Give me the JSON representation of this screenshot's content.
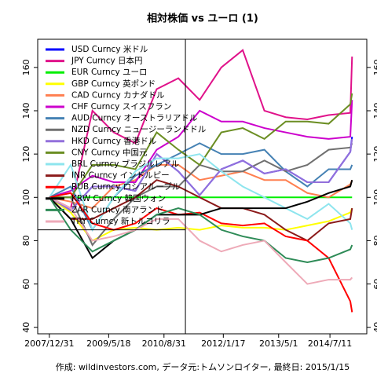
{
  "chart_data": {
    "type": "line",
    "title": "相対株価 vs ユーロ (1)",
    "footer": "作成: wildinvestors.com, データ元:トムソンロイター, 最終日: 2015/1/15",
    "x": [
      "2007/12/31",
      "2008/6/30",
      "2008/12/31",
      "2009/6/30",
      "2009/12/31",
      "2010/6/30",
      "2010/12/31",
      "2011/6/30",
      "2011/12/31",
      "2012/6/30",
      "2012/12/31",
      "2013/6/30",
      "2013/12/31",
      "2014/6/30",
      "2014/12/31",
      "2015/1/15"
    ],
    "xlim": [
      "2007/9/23",
      "2015/5/20"
    ],
    "xticks": [
      "2007/12/31",
      "2009/5/18",
      "2010/8/31",
      "2012/1/17",
      "2013/5/1",
      "2014/7/11"
    ],
    "ylim": [
      37,
      173
    ],
    "yticks": [
      40,
      60,
      80,
      100,
      120,
      140,
      160
    ],
    "vline": "2011/3/1",
    "hline": 85,
    "series": [
      {
        "name": "USD Curncy 米ドル",
        "color": "#0000ff",
        "values": [
          100,
          94,
          105,
          105,
          103,
          120,
          112,
          101,
          113,
          117,
          111,
          113,
          107,
          107,
          121,
          128
        ]
      },
      {
        "name": "JPY Curncy 日本円",
        "color": "#e0128a",
        "values": [
          100,
          95,
          140,
          130,
          125,
          150,
          155,
          145,
          160,
          168,
          140,
          137,
          136,
          138,
          139,
          165
        ]
      },
      {
        "name": "EUR Curncy ユーロ",
        "color": "#00ee00",
        "values": [
          100,
          100,
          100,
          100,
          100,
          100,
          100,
          100,
          100,
          100,
          100,
          100,
          100,
          100,
          100,
          100
        ]
      },
      {
        "name": "GBP Curncy 英ポンド",
        "color": "#ffff00",
        "values": [
          100,
          93,
          80,
          85,
          86,
          85,
          86,
          85,
          87,
          86,
          86,
          85,
          87,
          89,
          93,
          95
        ]
      },
      {
        "name": "CAD Curncy カナダドル",
        "color": "#ff7f50",
        "values": [
          100,
          98,
          95,
          105,
          108,
          115,
          115,
          108,
          110,
          112,
          108,
          108,
          102,
          100,
          106,
          108
        ]
      },
      {
        "name": "CHF Curncy スイスフラン",
        "color": "#cc00cc",
        "values": [
          100,
          103,
          110,
          107,
          107,
          122,
          128,
          140,
          135,
          135,
          132,
          130,
          128,
          127,
          128,
          145
        ]
      },
      {
        "name": "AUD Curncy オーストラリアドル",
        "color": "#4682b4",
        "values": [
          100,
          105,
          85,
          100,
          110,
          115,
          120,
          125,
          120,
          120,
          122,
          112,
          105,
          113,
          113,
          115
        ]
      },
      {
        "name": "NZD Curncy ニュージーランドドル",
        "color": "#707070",
        "values": [
          100,
          100,
          78,
          90,
          100,
          105,
          105,
          115,
          112,
          112,
          117,
          112,
          115,
          122,
          123,
          125
        ]
      },
      {
        "name": "HKD Curncy 香港ドル",
        "color": "#9370db",
        "values": [
          100,
          94,
          105,
          105,
          103,
          120,
          112,
          101,
          113,
          117,
          111,
          113,
          107,
          107,
          121,
          127
        ]
      },
      {
        "name": "CNY Curncy 中国元",
        "color": "#6b8e23",
        "values": [
          100,
          100,
          115,
          115,
          113,
          130,
          122,
          115,
          130,
          132,
          127,
          135,
          135,
          134,
          143,
          148
        ]
      },
      {
        "name": "BRL Curncy ブラジルレアル",
        "color": "#8ee5ee",
        "values": [
          100,
          115,
          85,
          100,
          112,
          118,
          118,
          120,
          112,
          105,
          100,
          95,
          90,
          97,
          88,
          85
        ]
      },
      {
        "name": "INR Curncy インドルピー",
        "color": "#8b1a1a",
        "values": [
          100,
          90,
          90,
          95,
          100,
          108,
          105,
          100,
          95,
          95,
          92,
          85,
          80,
          88,
          90,
          95
        ]
      },
      {
        "name": "RUB Curncy ロシアルーブル",
        "color": "#ff0000",
        "values": [
          100,
          102,
          88,
          85,
          88,
          95,
          92,
          93,
          88,
          87,
          88,
          82,
          80,
          72,
          52,
          47
        ]
      },
      {
        "name": "KRW Curncy 韓国ウォン",
        "color": "#000000",
        "values": [
          100,
          90,
          72,
          80,
          85,
          92,
          92,
          92,
          95,
          95,
          95,
          95,
          98,
          102,
          105,
          108
        ]
      },
      {
        "name": "ZAR Curncy 南アランド",
        "color": "#2e8b57",
        "values": [
          100,
          85,
          75,
          80,
          85,
          92,
          95,
          92,
          85,
          82,
          80,
          72,
          70,
          72,
          76,
          78
        ]
      },
      {
        "name": "TRY Curncy 新トルコリラ",
        "color": "#eeaab8",
        "values": [
          100,
          95,
          80,
          82,
          85,
          90,
          90,
          80,
          75,
          78,
          80,
          70,
          60,
          62,
          62,
          63
        ]
      }
    ]
  }
}
